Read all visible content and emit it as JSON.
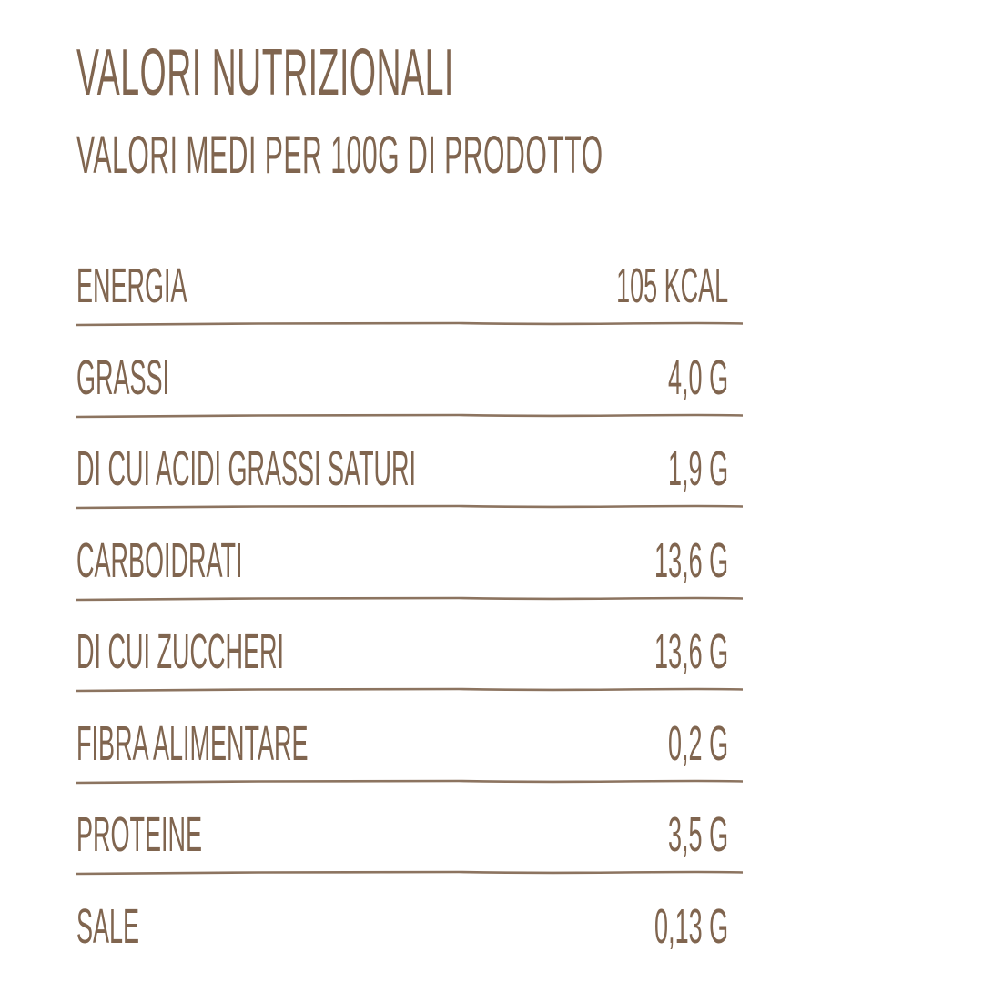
{
  "title": "Valori nutrizionali",
  "subtitle": "Valori medi per 100g di prodotto",
  "text_color": "#80654f",
  "rows": [
    {
      "label": "Energia",
      "value": "105 kcal"
    },
    {
      "label": "Grassi",
      "value": "4,0 g"
    },
    {
      "label": "di cui acidi grassi saturi",
      "value": "1,9 g"
    },
    {
      "label": "Carboidrati",
      "value": "13,6 g"
    },
    {
      "label": "di cui zuccheri",
      "value": "13,6 g"
    },
    {
      "label": "Fibra alimentare",
      "value": "0,2 g"
    },
    {
      "label": "Proteine",
      "value": "3,5 g"
    },
    {
      "label": "Sale",
      "value": "0,13 g"
    }
  ]
}
